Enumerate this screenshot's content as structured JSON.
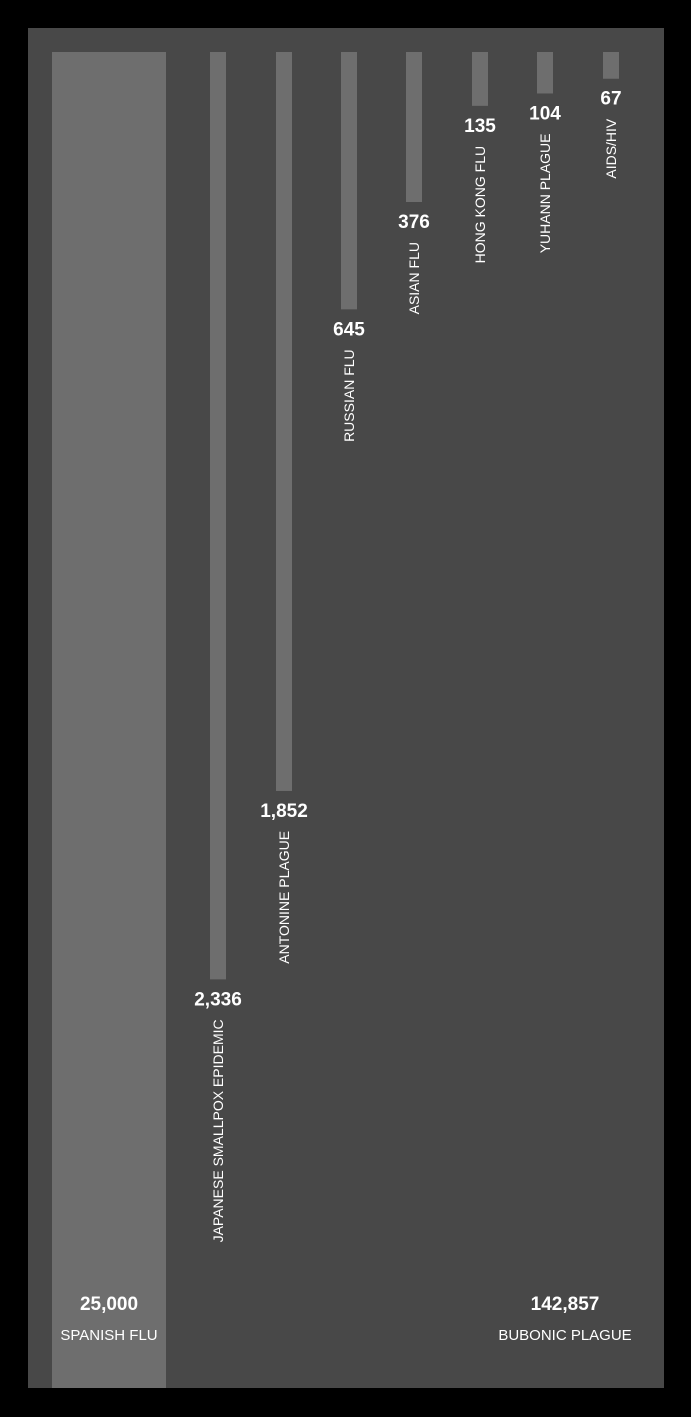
{
  "chart_data": {
    "type": "bar",
    "orientation": "vertical",
    "bars_grow": "down",
    "title": "",
    "xlabel": "",
    "ylabel": "",
    "categories": [
      "SPANISH FLU",
      "JAPANESE SMALLPOX EPIDEMIC",
      "ANTONINE PLAGUE",
      "RUSSIAN FLU",
      "ASIAN FLU",
      "HONG KONG FLU",
      "YUHANN PLAGUE",
      "AIDS/HIV"
    ],
    "values": [
      25000,
      2336,
      1852,
      645,
      376,
      135,
      104,
      67
    ],
    "value_labels": [
      "25,000",
      "2,336",
      "1,852",
      "645",
      "376",
      "135",
      "104",
      "67"
    ],
    "reference": {
      "name": "BUBONIC PLAGUE",
      "value": 142857,
      "value_label": "142,857",
      "note": "full panel height represents this value"
    },
    "colors": {
      "background": "#000000",
      "panel": "#484848",
      "bar": "#6e6e6e",
      "text": "#ffffff"
    }
  }
}
